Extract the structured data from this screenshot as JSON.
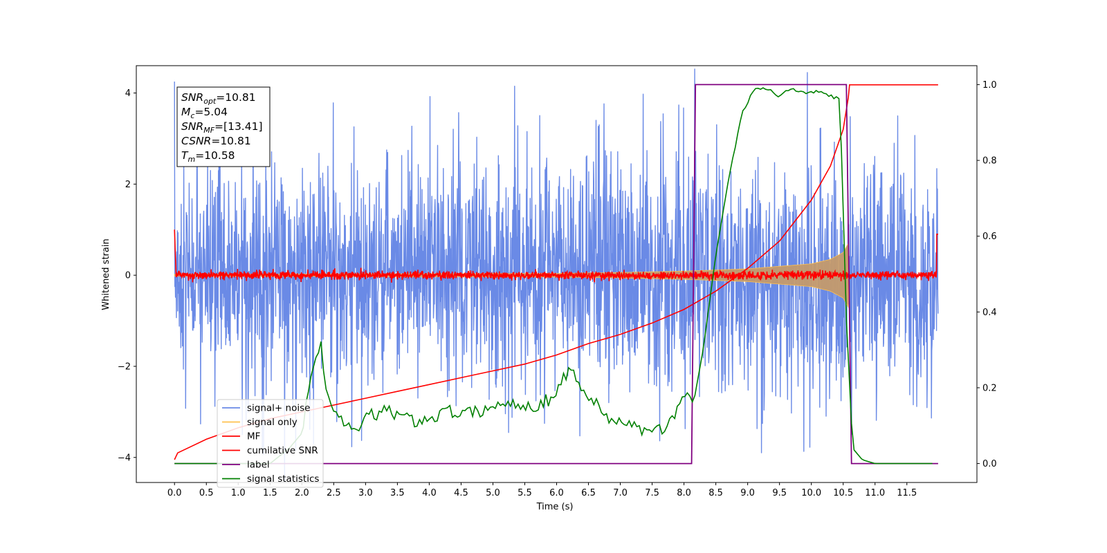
{
  "chart_data": {
    "type": "line",
    "xlabel": "Time (s)",
    "ylabel": "Whitened strain",
    "xlim": [
      -0.6,
      12.6
    ],
    "ylim": [
      -4.55,
      4.6
    ],
    "y2lim": [
      -0.05,
      1.05
    ],
    "x_ticks": [
      "0.0",
      "0.5",
      "1.0",
      "1.5",
      "2.0",
      "2.5",
      "3.0",
      "3.5",
      "4.0",
      "4.5",
      "5.0",
      "5.5",
      "6.0",
      "6.5",
      "7.0",
      "7.5",
      "8.0",
      "8.5",
      "9.0",
      "9.5",
      "10.0",
      "10.5",
      "11.0",
      "11.5"
    ],
    "y_ticks": [
      "-4",
      "-2",
      "0",
      "2",
      "4"
    ],
    "y2_ticks": [
      "0.0",
      "0.2",
      "0.4",
      "0.6",
      "0.8",
      "1.0"
    ],
    "grid": false,
    "legend_position": "lower-left",
    "annotations": [
      {
        "base": "SNR",
        "sub": "opt",
        "value": "=10.81"
      },
      {
        "base": "M",
        "sub": "c",
        "value": "=5.04"
      },
      {
        "base": "SNR",
        "sub": "MF",
        "value": "=[13.41]"
      },
      {
        "base": "CSNR",
        "sub": "",
        "value": "=10.81"
      },
      {
        "base": "T",
        "sub": "m",
        "value": "=10.58"
      }
    ],
    "series": [
      {
        "name": "signal+ noise",
        "axis": "left",
        "color": "#6a8ae6",
        "description_type": "noise band",
        "envelope": {
          "x": [
            0,
            2,
            4,
            6,
            8,
            10,
            11.99
          ],
          "upper": [
            2.6,
            2.8,
            2.9,
            2.9,
            3.0,
            2.9,
            2.6
          ],
          "lower": [
            -2.6,
            -2.7,
            -2.7,
            -2.8,
            -2.9,
            -3.1,
            -2.7
          ]
        }
      },
      {
        "name": "signal only",
        "axis": "left",
        "color": "#ffc04d",
        "x": [
          0,
          6.0,
          7.0,
          8.0,
          9.0,
          10.0,
          10.3,
          10.5,
          10.58
        ],
        "amplitude": [
          0.02,
          0.04,
          0.06,
          0.09,
          0.14,
          0.25,
          0.35,
          0.5,
          0.7
        ]
      },
      {
        "name": "MF",
        "axis": "left",
        "color": "#ff0000",
        "description_type": "noise band",
        "envelope": {
          "x": [
            0,
            11.99
          ],
          "upper": [
            0.12,
            0.12
          ],
          "lower": [
            -0.12,
            -0.12
          ]
        }
      },
      {
        "name": "cumilative SNR",
        "axis": "left",
        "color": "#ff0000",
        "x": [
          0.0,
          0.05,
          0.5,
          1.0,
          1.5,
          2.0,
          2.5,
          3.0,
          3.5,
          4.0,
          4.5,
          5.0,
          5.5,
          6.0,
          6.5,
          7.0,
          7.5,
          8.0,
          8.5,
          9.0,
          9.5,
          10.0,
          10.3,
          10.5,
          10.58,
          10.6,
          11.99
        ],
        "y": [
          -4.05,
          -3.9,
          -3.6,
          -3.35,
          -3.15,
          -3.0,
          -2.85,
          -2.7,
          -2.55,
          -2.4,
          -2.25,
          -2.1,
          -1.95,
          -1.75,
          -1.5,
          -1.3,
          -1.05,
          -0.75,
          -0.35,
          0.15,
          0.75,
          1.65,
          2.4,
          3.2,
          3.9,
          4.18,
          4.18
        ]
      },
      {
        "name": "label",
        "axis": "right",
        "color": "#800080",
        "x": [
          0.0,
          8.12,
          8.18,
          10.55,
          10.63,
          11.99
        ],
        "y": [
          0.0,
          0.0,
          1.0,
          1.0,
          0.0,
          0.0
        ]
      },
      {
        "name": "signal statistics",
        "axis": "right",
        "color": "#008000",
        "x": [
          0.0,
          0.5,
          1.0,
          1.5,
          1.8,
          2.0,
          2.1,
          2.2,
          2.3,
          2.4,
          2.6,
          2.8,
          3.0,
          3.3,
          3.5,
          3.8,
          4.0,
          4.3,
          4.6,
          5.0,
          5.3,
          5.6,
          5.9,
          6.2,
          6.5,
          6.8,
          7.1,
          7.4,
          7.7,
          8.0,
          8.15,
          8.3,
          8.5,
          8.7,
          8.9,
          9.1,
          9.3,
          9.5,
          9.7,
          9.9,
          10.1,
          10.3,
          10.45,
          10.55,
          10.65,
          10.8,
          11.0,
          11.3,
          11.6,
          11.9
        ],
        "y": [
          0.0,
          0.0,
          0.0,
          0.0,
          0.04,
          0.08,
          0.2,
          0.26,
          0.31,
          0.17,
          0.12,
          0.08,
          0.12,
          0.14,
          0.13,
          0.11,
          0.12,
          0.14,
          0.13,
          0.15,
          0.16,
          0.15,
          0.17,
          0.25,
          0.18,
          0.12,
          0.11,
          0.08,
          0.09,
          0.18,
          0.16,
          0.3,
          0.55,
          0.75,
          0.92,
          0.99,
          0.99,
          0.97,
          0.99,
          0.98,
          0.98,
          0.97,
          0.96,
          0.38,
          0.04,
          0.01,
          0.0,
          0.0,
          0.0,
          0.0
        ]
      }
    ]
  }
}
